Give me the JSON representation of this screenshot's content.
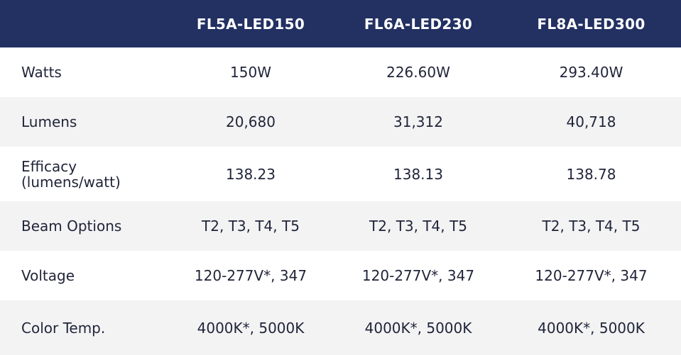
{
  "table": {
    "headers": [
      "",
      "FL5A-LED150",
      "FL6A-LED230",
      "FL8A-LED300"
    ],
    "rows": [
      {
        "label": "Watts",
        "values": [
          "150W",
          "226.60W",
          "293.40W"
        ]
      },
      {
        "label": "Lumens",
        "values": [
          "20,680",
          "31,312",
          "40,718"
        ]
      },
      {
        "label": "Efficacy (lumens/watt)",
        "values": [
          "138.23",
          "138.13",
          "138.78"
        ]
      },
      {
        "label": "Beam Options",
        "values": [
          "T2, T3, T4, T5",
          "T2, T3, T4, T5",
          "T2, T3, T4, T5"
        ]
      },
      {
        "label": "Voltage",
        "values": [
          "120-277V*, 347",
          "120-277V*, 347",
          "120-277V*, 347"
        ]
      },
      {
        "label": "Color Temp.",
        "values": [
          "4000K*, 5000K",
          "4000K*, 5000K",
          "4000K*, 5000K"
        ]
      }
    ]
  },
  "colors": {
    "header_bg": "#223062",
    "stripe_bg": "#f3f3f4",
    "text": "#1f2438"
  }
}
